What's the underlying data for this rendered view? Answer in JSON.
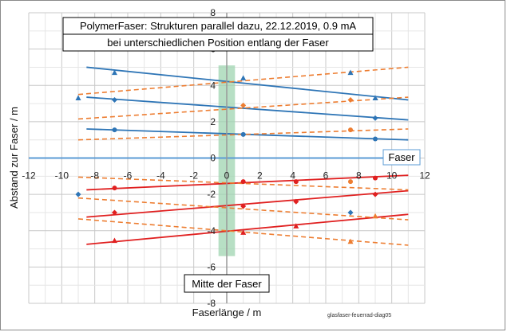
{
  "chart_data": {
    "type": "scatter",
    "title_line1": "PolymerFaser:  Strukturen parallel dazu, 22.12.2019, 0.9 mA",
    "title_line2": "bei unterschiedlichen Position entlang der Faser",
    "xlabel": "Faserlänge / m",
    "ylabel": "Abstand zur Faser / m",
    "xlim": [
      -12,
      12
    ],
    "ylim": [
      -8,
      8
    ],
    "xticks": [
      -12,
      -10,
      -8,
      -6,
      -4,
      -2,
      0,
      2,
      4,
      6,
      8,
      10,
      12
    ],
    "yticks": [
      -8,
      -6,
      -4,
      -2,
      0,
      2,
      4,
      6,
      8
    ],
    "xtick_labels": [
      "-12",
      "-10",
      "-8",
      "-6",
      "-4",
      "-2",
      "0",
      "2",
      "4",
      "6",
      "8",
      "10",
      "12"
    ],
    "ytick_labels": [
      "-8",
      "-6",
      "-4",
      "-2",
      "0",
      "2",
      "4",
      "6",
      "8"
    ],
    "grid": true,
    "fiber_label": "Faser",
    "center_label": "Mitte der Faser",
    "footer": "glasfaser-feuerrad-diag05",
    "center_band": {
      "x0": -0.5,
      "x1": 0.5,
      "y0": -5.4,
      "y1": 5.1,
      "color": "#9fd4b0"
    },
    "colors": {
      "blue": "#2e75b6",
      "red": "#e02020",
      "orange": "#ed7d31",
      "fiber": "#5b9bd5"
    },
    "lines": [
      {
        "color": "blue",
        "dash": false,
        "x": [
          -8.5,
          11
        ],
        "y": [
          5.0,
          3.2
        ]
      },
      {
        "color": "blue",
        "dash": false,
        "x": [
          -8.5,
          11
        ],
        "y": [
          3.35,
          2.1
        ]
      },
      {
        "color": "blue",
        "dash": false,
        "x": [
          -8.5,
          11
        ],
        "y": [
          1.6,
          1.0
        ]
      },
      {
        "color": "orange",
        "dash": true,
        "x": [
          -9,
          11
        ],
        "y": [
          3.5,
          5.0
        ]
      },
      {
        "color": "orange",
        "dash": true,
        "x": [
          -9,
          11
        ],
        "y": [
          2.15,
          3.35
        ]
      },
      {
        "color": "orange",
        "dash": true,
        "x": [
          -9,
          11
        ],
        "y": [
          1.0,
          1.6
        ]
      },
      {
        "color": "red",
        "dash": false,
        "x": [
          -8.5,
          11
        ],
        "y": [
          -1.75,
          -0.95
        ]
      },
      {
        "color": "red",
        "dash": false,
        "x": [
          -8.5,
          11
        ],
        "y": [
          -3.25,
          -1.8
        ]
      },
      {
        "color": "red",
        "dash": false,
        "x": [
          -8.5,
          11
        ],
        "y": [
          -4.75,
          -3.1
        ]
      },
      {
        "color": "orange",
        "dash": true,
        "x": [
          -9,
          11
        ],
        "y": [
          -1.05,
          -1.75
        ]
      },
      {
        "color": "orange",
        "dash": true,
        "x": [
          -9,
          11
        ],
        "y": [
          -2.2,
          -3.4
        ]
      },
      {
        "color": "orange",
        "dash": true,
        "x": [
          -9,
          11
        ],
        "y": [
          -3.35,
          -4.8
        ]
      }
    ],
    "points": [
      {
        "x": -6.8,
        "y": 4.7,
        "marker": "triangle",
        "color": "blue"
      },
      {
        "x": -6.8,
        "y": 3.2,
        "marker": "diamond",
        "color": "blue"
      },
      {
        "x": -6.8,
        "y": 1.55,
        "marker": "circle",
        "color": "blue"
      },
      {
        "x": 1.0,
        "y": 4.4,
        "marker": "triangle",
        "color": "blue"
      },
      {
        "x": 1.0,
        "y": 2.9,
        "marker": "diamond",
        "color": "orange"
      },
      {
        "x": 1.0,
        "y": 1.3,
        "marker": "circle",
        "color": "blue"
      },
      {
        "x": 9.0,
        "y": 3.3,
        "marker": "triangle",
        "color": "blue"
      },
      {
        "x": 9.0,
        "y": 2.2,
        "marker": "diamond",
        "color": "blue"
      },
      {
        "x": 9.0,
        "y": 1.05,
        "marker": "circle",
        "color": "blue"
      },
      {
        "x": 7.5,
        "y": 3.2,
        "marker": "diamond",
        "color": "orange"
      },
      {
        "x": 7.5,
        "y": 1.55,
        "marker": "circle",
        "color": "orange"
      },
      {
        "x": 7.5,
        "y": 4.7,
        "marker": "triangle",
        "color": "blue"
      },
      {
        "x": -6.8,
        "y": -1.65,
        "marker": "circle",
        "color": "red"
      },
      {
        "x": -6.8,
        "y": -3.0,
        "marker": "diamond",
        "color": "red"
      },
      {
        "x": -6.8,
        "y": -4.55,
        "marker": "triangle",
        "color": "red"
      },
      {
        "x": 1.0,
        "y": -1.3,
        "marker": "circle",
        "color": "red"
      },
      {
        "x": 1.0,
        "y": -2.65,
        "marker": "diamond",
        "color": "red"
      },
      {
        "x": 1.0,
        "y": -4.1,
        "marker": "triangle",
        "color": "red"
      },
      {
        "x": 4.2,
        "y": -1.3,
        "marker": "circle",
        "color": "red"
      },
      {
        "x": 4.2,
        "y": -2.4,
        "marker": "diamond",
        "color": "red"
      },
      {
        "x": 4.2,
        "y": -3.75,
        "marker": "triangle",
        "color": "red"
      },
      {
        "x": 9.0,
        "y": -1.1,
        "marker": "circle",
        "color": "red"
      },
      {
        "x": 9.0,
        "y": -2.0,
        "marker": "diamond",
        "color": "red"
      },
      {
        "x": 9.0,
        "y": -3.2,
        "marker": "triangle",
        "color": "orange"
      },
      {
        "x": 7.5,
        "y": -1.3,
        "marker": "circle",
        "color": "orange"
      },
      {
        "x": 7.5,
        "y": -3.0,
        "marker": "diamond",
        "color": "blue"
      },
      {
        "x": 7.5,
        "y": -4.6,
        "marker": "triangle",
        "color": "orange"
      },
      {
        "x": -9.0,
        "y": -2.0,
        "marker": "diamond",
        "color": "blue"
      },
      {
        "x": -9.0,
        "y": 3.3,
        "marker": "triangle",
        "color": "blue"
      }
    ]
  }
}
